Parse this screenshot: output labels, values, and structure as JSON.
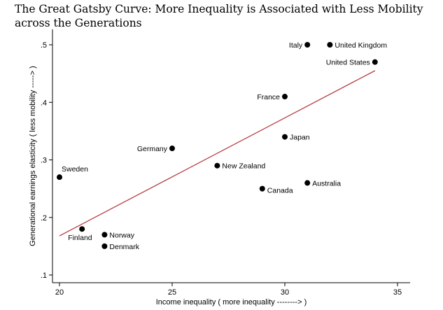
{
  "title_line1": "The Great Gatsby Curve: More Inequality is Associated with Less Mobility",
  "title_line2": "across the Generations",
  "chart_data": {
    "type": "scatter",
    "title": "The Great Gatsby Curve: More Inequality is Associated with Less Mobility across the Generations",
    "xlabel": "Income inequality ( more inequality --------> )",
    "ylabel": "Generational earnings elasticity ( less mobility -----> )",
    "xlim": [
      20,
      35
    ],
    "ylim": [
      0.1,
      0.5
    ],
    "xticks": [
      20,
      25,
      30,
      35
    ],
    "xtick_labels": [
      "20",
      "25",
      "30",
      "35"
    ],
    "yticks": [
      0.1,
      0.2,
      0.3,
      0.4,
      0.5
    ],
    "ytick_labels": [
      ".1",
      ".2",
      ".3",
      ".4",
      ".5"
    ],
    "points": [
      {
        "label": "Italy",
        "x": 31,
        "y": 0.5,
        "pos": "left"
      },
      {
        "label": "United Kingdom",
        "x": 32,
        "y": 0.5,
        "pos": "right"
      },
      {
        "label": "United States",
        "x": 34,
        "y": 0.47,
        "pos": "left"
      },
      {
        "label": "France",
        "x": 30,
        "y": 0.41,
        "pos": "left"
      },
      {
        "label": "Japan",
        "x": 30,
        "y": 0.34,
        "pos": "right"
      },
      {
        "label": "Germany",
        "x": 25,
        "y": 0.32,
        "pos": "left"
      },
      {
        "label": "New Zealand",
        "x": 27,
        "y": 0.29,
        "pos": "right"
      },
      {
        "label": "Sweden",
        "x": 20,
        "y": 0.27,
        "pos": "above-right"
      },
      {
        "label": "Australia",
        "x": 31,
        "y": 0.26,
        "pos": "right"
      },
      {
        "label": "Canada",
        "x": 29,
        "y": 0.25,
        "pos": "right-low"
      },
      {
        "label": "Finland",
        "x": 21,
        "y": 0.18,
        "pos": "below-left"
      },
      {
        "label": "Norway",
        "x": 22,
        "y": 0.17,
        "pos": "right"
      },
      {
        "label": "Denmark",
        "x": 22,
        "y": 0.15,
        "pos": "right"
      }
    ],
    "fit_line": {
      "x": [
        20,
        34
      ],
      "y": [
        0.168,
        0.455
      ],
      "color": "#b5393e"
    },
    "marker_color": "#000000",
    "grid": false
  }
}
